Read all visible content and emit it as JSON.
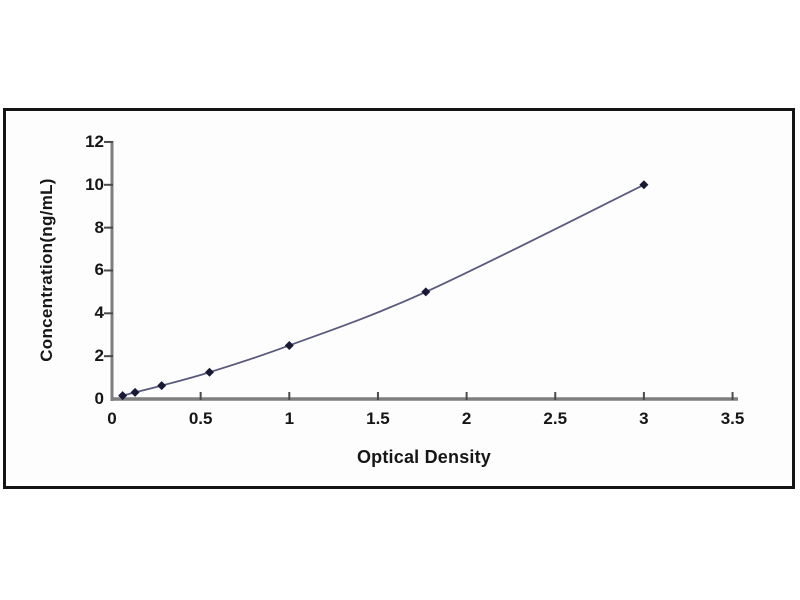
{
  "chart_data": {
    "type": "line",
    "title": "",
    "xlabel": "Optical Density",
    "ylabel": "Concentration(ng/mL)",
    "xlim": [
      0,
      3.5
    ],
    "ylim": [
      0,
      12
    ],
    "x_ticks": [
      0,
      0.5,
      1,
      1.5,
      2,
      2.5,
      3,
      3.5
    ],
    "y_ticks": [
      0,
      2,
      4,
      6,
      8,
      10,
      12
    ],
    "grid": false,
    "legend_position": "none",
    "series": [
      {
        "name": "standard-curve",
        "x": [
          0.06,
          0.13,
          0.28,
          0.55,
          1.0,
          1.77,
          3.0
        ],
        "y": [
          0.156,
          0.312,
          0.625,
          1.25,
          2.5,
          5,
          10
        ],
        "marker": "diamond",
        "line_color": "#5a5a7d",
        "marker_color": "#191936"
      }
    ],
    "colors": {
      "axis": "#7f7f7f",
      "tick": "#4a4a4a",
      "text": "#161616",
      "panel_border": "#141414",
      "panel_background": "#fdfdfd"
    }
  }
}
